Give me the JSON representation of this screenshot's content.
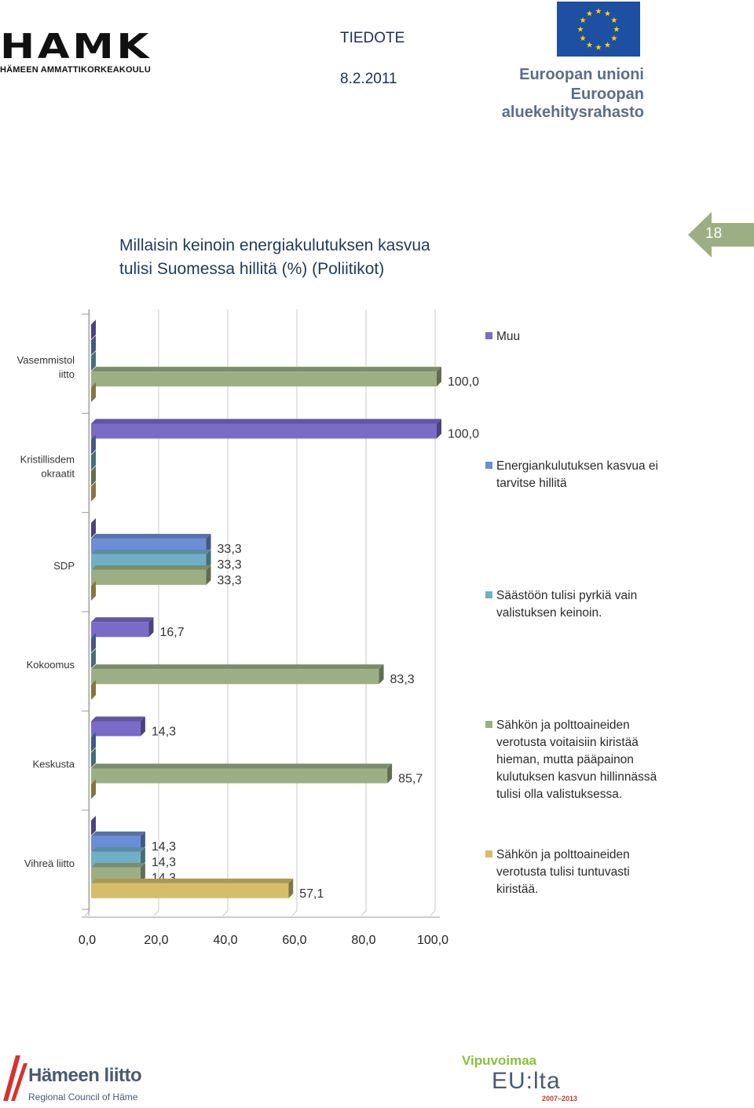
{
  "header": {
    "org_logo_name": "HAMK",
    "org_logo_subtitle": "HÄMEEN AMMATTIKORKEAKOULU",
    "doc_type": "TIEDOTE",
    "date": "8.2.2011",
    "eu_union": "Euroopan unioni",
    "eu_fund": "Euroopan aluekehitysrahasto"
  },
  "slide": {
    "title_line1": "Millaisin keinoin  energiakulutuksen  kasvua",
    "title_line2": "tulisi Suomessa hillitä (%) (Poliitikot)",
    "page_number": "18"
  },
  "colors": {
    "muu": "#7a6bc9",
    "ei_tarvitse": "#6b8ed6",
    "saastoon": "#6fb0c8",
    "verotusta_voitaisiin": "#9caf84",
    "verotusta_tuntuvasti": "#d4be6a",
    "page_badge": "#9caf84"
  },
  "chart_data": {
    "type": "bar",
    "orientation": "horizontal",
    "style": "3d-clustered",
    "categories": [
      "Vasemmistoliitto",
      "Kristillisdemokraatit",
      "SDP",
      "Kokoomus",
      "Keskusta",
      "Vihreä liitto"
    ],
    "category_labels": [
      [
        "Vasemmistol",
        "iitto"
      ],
      [
        "Kristillisdem",
        "okraatit"
      ],
      [
        "SDP"
      ],
      [
        "Kokoomus"
      ],
      [
        "Keskusta"
      ],
      [
        "Vihreä liitto"
      ]
    ],
    "series": [
      {
        "name": "Muu",
        "values": [
          0,
          100.0,
          0,
          16.7,
          14.3,
          0
        ]
      },
      {
        "name": "Energiankulutuksen kasvua ei tarvitse hillitä",
        "values": [
          0,
          0,
          33.3,
          0,
          0,
          14.3
        ]
      },
      {
        "name": "Säästöön tulisi pyrkiä vain valistuksen keinoin.",
        "values": [
          0,
          0,
          33.3,
          0,
          0,
          14.3
        ]
      },
      {
        "name": "Sähkön ja polttoaineiden verotusta voitaisiin kiristää hieman, mutta pääpainon kulutuksen kasvun hillinnässä tulisi olla valistuksessa.",
        "values": [
          100.0,
          0,
          33.3,
          83.3,
          85.7,
          14.3
        ]
      },
      {
        "name": "Sähkön ja polttoaineiden verotusta tulisi tuntuvasti kiristää.",
        "values": [
          0,
          0,
          0,
          0,
          0,
          57.1
        ]
      }
    ],
    "data_labels": [
      [
        "",
        "",
        "",
        "100,0",
        ""
      ],
      [
        "100,0",
        "",
        "",
        "",
        ""
      ],
      [
        "",
        "33,3",
        "33,3",
        "33,3",
        ""
      ],
      [
        "16,7",
        "",
        "",
        "83,3",
        ""
      ],
      [
        "14,3",
        "",
        "",
        "85,7",
        ""
      ],
      [
        "",
        "14,3",
        "14,3",
        "14,3",
        "57,1"
      ]
    ],
    "xticks": [
      "0,0",
      "20,0",
      "40,0",
      "60,0",
      "80,0",
      "100,0"
    ],
    "xlim": [
      0,
      100
    ],
    "gridlines": true,
    "legend_position": "right"
  },
  "legend": [
    {
      "color": "#7a6bc9",
      "lines": [
        "Muu"
      ]
    },
    {
      "color": "#6b8ed6",
      "lines": [
        "Energiankulutuksen kasvua ei",
        "tarvitse hillitä"
      ]
    },
    {
      "color": "#6fb0c8",
      "lines": [
        "Säästöön tulisi pyrkiä vain",
        "valistuksen keinoin."
      ]
    },
    {
      "color": "#9caf84",
      "lines": [
        "Sähkön ja polttoaineiden",
        "verotusta voitaisiin kiristää",
        "hieman, mutta pääpainon",
        "kulutuksen kasvun hillinnässä",
        "tulisi olla valistuksessa."
      ]
    },
    {
      "color": "#d4be6a",
      "lines": [
        "Sähkön ja polttoaineiden",
        "verotusta tulisi tuntuvasti",
        "kiristää."
      ]
    }
  ],
  "footer": {
    "hameen_liitto": "Hämeen liitto",
    "hameen_liitto_sub": "Regional Council of Häme",
    "vipuvoimaa": "Vipuvoimaa",
    "eu_lta": "EU:lta",
    "years": "2007–2013"
  }
}
